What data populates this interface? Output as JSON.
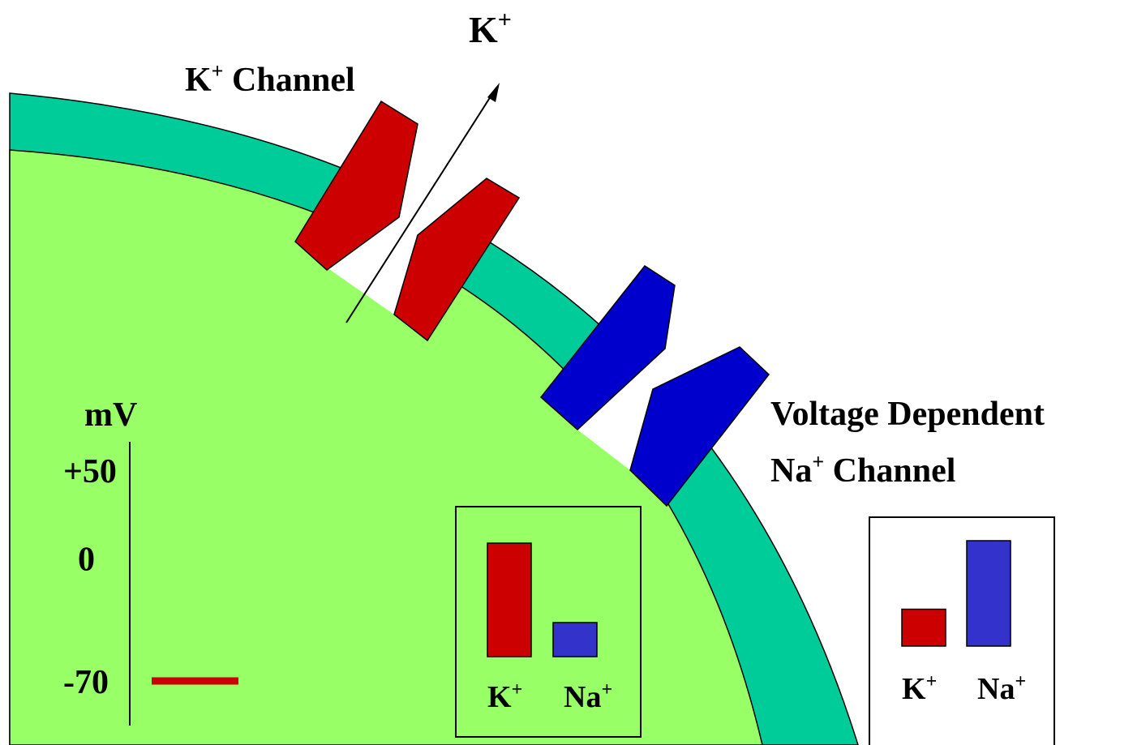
{
  "labels": {
    "ion_top": "K",
    "ion_top_sup": "+",
    "k_channel": "K",
    "k_channel_sup": "+",
    "k_channel_word": " Channel",
    "na_channel_line1": "Voltage Dependent",
    "na_channel_line2_a": "Na",
    "na_channel_line2_sup": "+",
    "na_channel_line2_b": " Channel"
  },
  "voltage_scale": {
    "unit": "mV",
    "ticks": [
      "+50",
      "0",
      "-70"
    ],
    "membrane_potential_mV": -70
  },
  "inside_box": {
    "k_label": "K",
    "k_sup": "+",
    "na_label": "Na",
    "na_sup": "+",
    "k_level": 1.0,
    "na_level": 0.3
  },
  "outside_box": {
    "k_label": "K",
    "k_sup": "+",
    "na_label": "Na",
    "na_sup": "+",
    "k_level": 0.35,
    "na_level": 1.0
  },
  "colors": {
    "cytoplasm": "#99ff66",
    "membrane": "#00cc99",
    "k_channel": "#cc0000",
    "na_channel": "#0000cc",
    "k_bar": "#cc0000",
    "na_bar": "#3333cc",
    "potential_marker": "#cc0000"
  }
}
